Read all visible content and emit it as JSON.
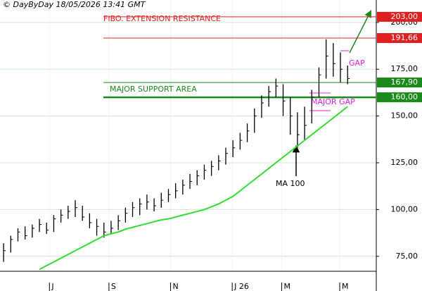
{
  "chart_data": {
    "type": "ohlc",
    "title": "© DayByDay 18/05/2026 13:41 GMT",
    "x": [
      0,
      1,
      2,
      3,
      4,
      5,
      6,
      7,
      8,
      9,
      10,
      11,
      12,
      13,
      14,
      15,
      16,
      17,
      18,
      19,
      20,
      21,
      22,
      23,
      24,
      25,
      26,
      27,
      28,
      29,
      30,
      31,
      32,
      33,
      34,
      35,
      36,
      37,
      38,
      39,
      40,
      41,
      42,
      43,
      44,
      45,
      46,
      47,
      48
    ],
    "high": [
      82,
      86,
      90,
      91,
      92,
      95,
      93,
      97,
      100,
      102,
      105,
      102,
      98,
      95,
      93,
      94,
      97,
      101,
      104,
      106,
      108,
      106,
      109,
      111,
      114,
      116,
      119,
      121,
      124,
      126,
      129,
      133,
      137,
      141,
      146,
      154,
      161,
      166,
      170,
      167,
      160,
      152,
      155,
      164,
      176,
      191,
      189,
      184,
      177
    ],
    "low": [
      72,
      77,
      83,
      84,
      85,
      88,
      87,
      88,
      93,
      95,
      96,
      94,
      90,
      86,
      85,
      87,
      89,
      93,
      96,
      97,
      100,
      99,
      101,
      104,
      106,
      108,
      111,
      113,
      116,
      118,
      121,
      124,
      128,
      132,
      136,
      141,
      149,
      155,
      160,
      150,
      140,
      133,
      137,
      146,
      160,
      170,
      171,
      168,
      167
    ],
    "close": [
      78,
      84,
      88,
      86,
      90,
      92,
      89,
      95,
      97,
      99,
      101,
      96,
      93,
      91,
      88,
      90,
      94,
      98,
      101,
      103,
      104,
      102,
      105,
      108,
      110,
      113,
      115,
      118,
      121,
      123,
      126,
      130,
      133,
      137,
      142,
      150,
      157,
      163,
      166,
      158,
      150,
      140,
      145,
      160,
      172,
      182,
      178,
      175,
      170
    ],
    "price_color": "#000000",
    "ma": {
      "name": "MA 100",
      "color": "#33dd33",
      "values": [
        null,
        null,
        null,
        null,
        null,
        68,
        70,
        72,
        74,
        76,
        78,
        80,
        82,
        84,
        86,
        87,
        88,
        89.5,
        90.5,
        91.5,
        92.5,
        93.5,
        94.5,
        95,
        96,
        97,
        98,
        99,
        100,
        101.5,
        103,
        105,
        107,
        110,
        113,
        116,
        119,
        122,
        125,
        128,
        131,
        134,
        137,
        140,
        143,
        146,
        149,
        152,
        155
      ]
    },
    "levels": [
      {
        "value": 203,
        "label": "203,00",
        "color": "#e02020"
      },
      {
        "value": 191.66,
        "label": "191,66",
        "color": "#e02020"
      },
      {
        "value": 167.9,
        "label": "167,90",
        "color": "#1a8a1a"
      },
      {
        "value": 160,
        "label": "160,00",
        "color": "#1a8a1a"
      }
    ],
    "annotations": [
      "FIBO. EXTENSION RESISTANCE",
      "MAJOR SUPPORT AREA",
      "MAJOR GAP",
      "GAP"
    ],
    "xlim": [
      -0.5,
      52
    ],
    "xticks": [
      {
        "value": 6.4,
        "label": "J"
      },
      {
        "value": 14.7,
        "label": "S"
      },
      {
        "value": 23.3,
        "label": "N"
      },
      {
        "value": 31.9,
        "label": "J 26"
      },
      {
        "value": 38.8,
        "label": "M"
      },
      {
        "value": 46.9,
        "label": "M"
      }
    ],
    "ylim": [
      67,
      212
    ],
    "yticks": [
      {
        "value": 75,
        "label": "75,00"
      },
      {
        "value": 100,
        "label": "100,00"
      },
      {
        "value": 125,
        "label": "125,00"
      },
      {
        "value": 150,
        "label": "150,00"
      },
      {
        "value": 175,
        "label": "175,00"
      },
      {
        "value": 200,
        "label": "200,00"
      }
    ],
    "grid": true
  }
}
